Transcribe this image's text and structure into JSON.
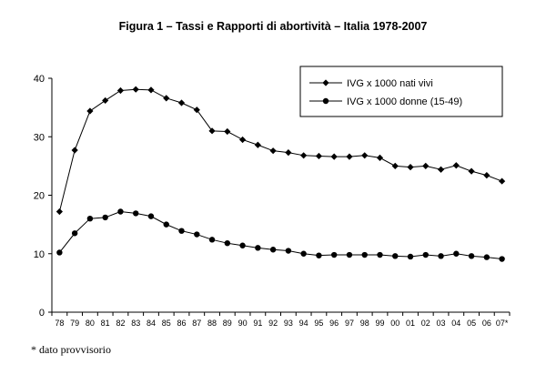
{
  "chart_data": {
    "type": "line",
    "title": "Figura 1 – Tassi e Rapporti di abortività – Italia 1978-2007",
    "xlabel": "",
    "ylabel": "",
    "ylim": [
      0,
      40
    ],
    "yticks": [
      0,
      10,
      20,
      30,
      40
    ],
    "grid": false,
    "legend_position": "top-right",
    "categories": [
      "78",
      "79",
      "80",
      "81",
      "82",
      "83",
      "84",
      "85",
      "86",
      "87",
      "88",
      "89",
      "90",
      "91",
      "92",
      "93",
      "94",
      "95",
      "96",
      "97",
      "98",
      "99",
      "00",
      "01",
      "02",
      "03",
      "04",
      "05",
      "06",
      "07*"
    ],
    "series": [
      {
        "name": "IVG x 1000 nati vivi",
        "marker": "diamond",
        "color": "#000000",
        "values": [
          17.2,
          27.7,
          34.4,
          36.2,
          37.9,
          38.1,
          38.0,
          36.6,
          35.8,
          34.6,
          31.0,
          30.9,
          29.5,
          28.6,
          27.6,
          27.3,
          26.8,
          26.7,
          26.6,
          26.6,
          26.8,
          26.4,
          25.0,
          24.8,
          25.0,
          24.4,
          25.1,
          24.1,
          23.4,
          22.4
        ]
      },
      {
        "name": "IVG x 1000 donne (15-49)",
        "marker": "circle",
        "color": "#000000",
        "values": [
          10.2,
          13.5,
          16.0,
          16.2,
          17.2,
          16.9,
          16.4,
          15.0,
          13.9,
          13.3,
          12.4,
          11.8,
          11.4,
          11.0,
          10.7,
          10.5,
          10.0,
          9.7,
          9.8,
          9.8,
          9.8,
          9.8,
          9.6,
          9.5,
          9.8,
          9.6,
          10.0,
          9.6,
          9.4,
          9.1
        ]
      }
    ]
  },
  "footnote": "* dato provvisorio"
}
